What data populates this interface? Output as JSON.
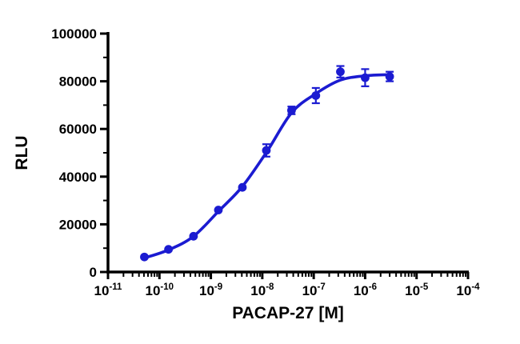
{
  "chart": {
    "background_color": "#ffffff",
    "axis_color": "#000000",
    "accent_color": "#1b1bd1"
  },
  "chart_data": {
    "type": "scatter",
    "title": "",
    "xlabel": "PACAP-27 [M]",
    "ylabel": "RLU",
    "x_scale": "log10",
    "x_range_log": [
      -11,
      -4
    ],
    "x_tick_exponents": [
      -11,
      -10,
      -9,
      -8,
      -7,
      -6,
      -5,
      -4
    ],
    "x_tick_base": "10",
    "ylim": [
      0,
      100000
    ],
    "y_major_ticks": [
      0,
      20000,
      40000,
      60000,
      80000,
      100000
    ],
    "y_minor_ticks": [
      10000,
      30000,
      50000,
      70000,
      90000
    ],
    "grid": false,
    "legend": "none",
    "series": [
      {
        "name": "PACAP-27",
        "color": "#1b1bd1",
        "marker": "circle",
        "x": [
          5.1e-11,
          1.5e-10,
          4.6e-10,
          1.4e-09,
          4.1e-09,
          1.2e-08,
          3.7e-08,
          1.1e-07,
          3.3e-07,
          1e-06,
          3e-06
        ],
        "y": [
          6300,
          9500,
          15000,
          26000,
          35500,
          51000,
          67800,
          74000,
          84000,
          81500,
          82000
        ],
        "yerr": [
          0,
          0,
          0,
          0,
          0,
          2600,
          1600,
          3200,
          2400,
          3600,
          2000
        ]
      }
    ],
    "fit_curve": {
      "name": "sigmoidal-dose-response-fit",
      "color": "#1b1bd1",
      "logx": [
        -10.29,
        -9.82,
        -9.34,
        -8.85,
        -8.39,
        -7.91,
        -7.43,
        -6.96,
        -6.48,
        -6.0,
        -5.52
      ],
      "y": [
        5900,
        9300,
        14900,
        25500,
        35800,
        50500,
        66800,
        74800,
        80500,
        82300,
        82800
      ]
    }
  }
}
